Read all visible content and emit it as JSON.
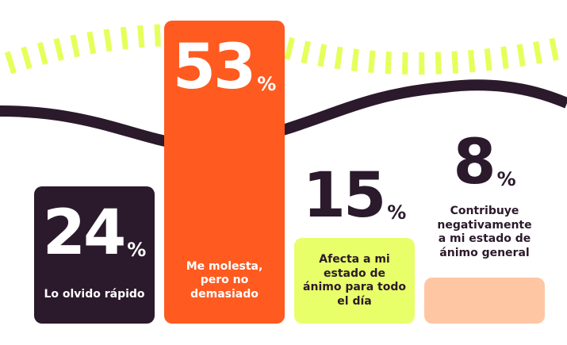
{
  "chart_data": {
    "type": "bar",
    "categories": [
      "Lo olvido rápido",
      "Me molesta, pero no demasiado",
      "Afecta a mi estado de ánimo para todo el día",
      "Contribuye negativamente a mi estado de ánimo general"
    ],
    "values": [
      24,
      53,
      15,
      8
    ],
    "unit": "%",
    "colors": [
      "#2b1a2b",
      "#ff5a1f",
      "#e8ff6a",
      "#ffc6a4"
    ],
    "text_colors": [
      "#ffffff",
      "#ffffff",
      "#2b1a2b",
      "#2b1a2b"
    ],
    "ylim": [
      0,
      55
    ]
  }
}
